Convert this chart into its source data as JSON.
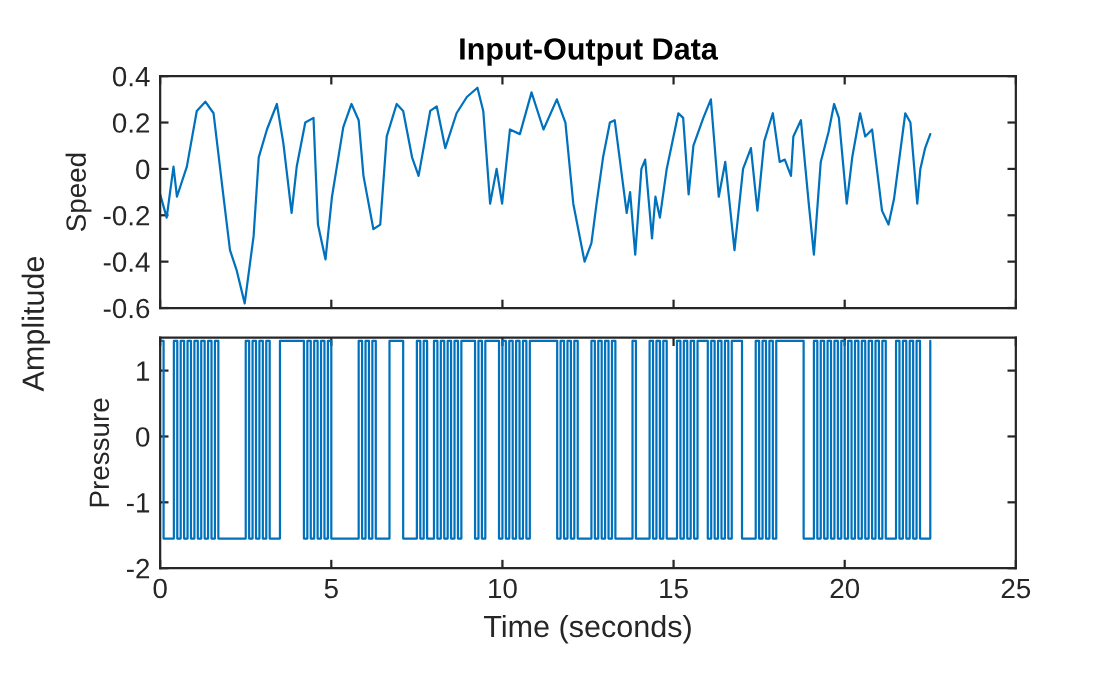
{
  "chart_data": [
    {
      "type": "line",
      "title": "Input-Output Data",
      "ylabel": "Speed",
      "annotations": [
        "Amplitude"
      ],
      "tick_labels": "y",
      "xlim": [
        0,
        25
      ],
      "xticks": [
        0,
        5,
        10,
        15,
        20,
        25
      ],
      "ylim": [
        -0.6,
        0.4
      ],
      "yticks": [
        -0.6,
        -0.4,
        -0.2,
        0,
        0.2,
        0.4
      ],
      "series": [
        {
          "color": "#0072bd",
          "x": [
            0,
            0.19,
            0.39,
            0.49,
            0.78,
            1.07,
            1.32,
            1.56,
            1.85,
            2.04,
            2.24,
            2.47,
            2.73,
            2.88,
            3.12,
            3.41,
            3.6,
            3.84,
            3.99,
            4.24,
            4.48,
            4.61,
            4.83,
            5.02,
            5.35,
            5.59,
            5.8,
            5.94,
            6.23,
            6.43,
            6.62,
            6.91,
            7.1,
            7.36,
            7.55,
            7.89,
            8.08,
            8.33,
            8.66,
            8.96,
            9.27,
            9.44,
            9.64,
            9.83,
            9.99,
            10.22,
            10.51,
            10.85,
            11.2,
            11.59,
            11.84,
            12.07,
            12.4,
            12.6,
            12.75,
            12.94,
            13.14,
            13.28,
            13.43,
            13.63,
            13.73,
            13.88,
            14.06,
            14.17,
            14.37,
            14.47,
            14.6,
            14.8,
            15.14,
            15.28,
            15.44,
            15.58,
            15.87,
            16.09,
            16.32,
            16.51,
            16.78,
            17.03,
            17.26,
            17.45,
            17.65,
            17.9,
            18.1,
            18.25,
            18.43,
            18.5,
            18.72,
            18.95,
            19.1,
            19.3,
            19.53,
            19.69,
            19.83,
            20.06,
            20.22,
            20.45,
            20.6,
            20.8,
            21.09,
            21.28,
            21.44,
            21.77,
            21.92,
            22.12,
            22.21,
            22.35,
            22.5
          ],
          "values": [
            -0.11,
            -0.21,
            0.01,
            -0.12,
            0.01,
            0.25,
            0.29,
            0.24,
            -0.12,
            -0.35,
            -0.44,
            -0.58,
            -0.29,
            0.05,
            0.17,
            0.28,
            0.11,
            -0.19,
            0.01,
            0.2,
            0.22,
            -0.24,
            -0.39,
            -0.12,
            0.18,
            0.28,
            0.21,
            -0.03,
            -0.26,
            -0.24,
            0.14,
            0.28,
            0.25,
            0.05,
            -0.03,
            0.25,
            0.27,
            0.09,
            0.24,
            0.31,
            0.35,
            0.25,
            -0.15,
            0.0,
            -0.15,
            0.17,
            0.15,
            0.33,
            0.17,
            0.3,
            0.2,
            -0.15,
            -0.4,
            -0.32,
            -0.15,
            0.05,
            0.2,
            0.21,
            0.04,
            -0.19,
            -0.1,
            -0.37,
            0.0,
            0.04,
            -0.3,
            -0.12,
            -0.21,
            0.0,
            0.24,
            0.22,
            -0.11,
            0.1,
            0.22,
            0.3,
            -0.12,
            0.03,
            -0.35,
            0.0,
            0.09,
            -0.18,
            0.12,
            0.24,
            0.03,
            0.04,
            -0.03,
            0.14,
            0.21,
            -0.15,
            -0.37,
            0.03,
            0.16,
            0.28,
            0.22,
            -0.15,
            0.05,
            0.24,
            0.14,
            0.17,
            -0.18,
            -0.24,
            -0.13,
            0.24,
            0.2,
            -0.15,
            0.0,
            0.09,
            0.15
          ]
        }
      ]
    },
    {
      "type": "step",
      "ylabel": "Pressure",
      "xlabel": "Time (seconds)",
      "xlim": [
        0,
        25
      ],
      "xticks": [
        0,
        5,
        10,
        15,
        20,
        25
      ],
      "ylim": [
        -2,
        1.5
      ],
      "yticks": [
        -2,
        -1,
        0,
        1
      ],
      "series": [
        {
          "color": "#0072bd",
          "x": [
            0,
            0.1,
            0.4,
            0.5,
            0.6,
            0.7,
            0.8,
            0.9,
            1.0,
            1.1,
            1.2,
            1.3,
            1.4,
            1.5,
            1.6,
            1.7,
            2.5,
            2.6,
            2.7,
            2.8,
            2.9,
            3.0,
            3.1,
            3.2,
            3.5,
            4.2,
            4.3,
            4.4,
            4.5,
            4.6,
            4.7,
            4.8,
            4.9,
            5.0,
            5.8,
            5.9,
            6.0,
            6.1,
            6.2,
            6.3,
            6.7,
            7.1,
            7.5,
            7.6,
            7.7,
            7.8,
            8.0,
            8.1,
            8.2,
            8.3,
            8.4,
            8.5,
            8.6,
            8.7,
            8.8,
            9.2,
            9.3,
            9.4,
            9.5,
            9.9,
            10.0,
            10.1,
            10.2,
            10.3,
            10.4,
            10.5,
            10.6,
            10.7,
            10.8,
            11.6,
            11.7,
            11.8,
            11.9,
            12.0,
            12.1,
            12.2,
            12.6,
            12.7,
            12.8,
            12.9,
            13.0,
            13.1,
            13.2,
            13.3,
            13.8,
            13.9,
            14.3,
            14.4,
            14.5,
            14.6,
            14.7,
            14.8,
            15.1,
            15.2,
            15.3,
            15.4,
            15.5,
            15.6,
            15.7,
            16.0,
            16.1,
            16.2,
            16.3,
            16.4,
            16.5,
            16.6,
            16.7,
            17.0,
            17.4,
            17.5,
            17.6,
            17.7,
            17.8,
            17.9,
            18.0,
            18.8,
            19.1,
            19.2,
            19.3,
            19.4,
            19.5,
            19.6,
            19.7,
            19.8,
            19.9,
            20.0,
            20.1,
            20.2,
            20.3,
            20.4,
            20.5,
            20.6,
            20.7,
            20.8,
            20.9,
            21.0,
            21.1,
            21.2,
            21.5,
            21.6,
            21.7,
            21.8,
            21.9,
            22.0,
            22.1,
            22.2,
            22.5
          ],
          "values": [
            1.45,
            -1.55,
            1.45,
            -1.55,
            1.45,
            -1.55,
            1.45,
            -1.55,
            1.45,
            -1.55,
            1.45,
            -1.55,
            1.45,
            -1.55,
            1.45,
            -1.55,
            1.45,
            -1.55,
            1.45,
            -1.55,
            1.45,
            -1.55,
            1.45,
            -1.55,
            1.45,
            -1.55,
            1.45,
            -1.55,
            1.45,
            -1.55,
            1.45,
            -1.55,
            1.45,
            -1.55,
            1.45,
            -1.55,
            1.45,
            -1.55,
            1.45,
            -1.55,
            1.45,
            -1.55,
            1.45,
            -1.55,
            1.45,
            -1.55,
            1.45,
            -1.55,
            1.45,
            -1.55,
            1.45,
            -1.55,
            1.45,
            -1.55,
            1.45,
            -1.55,
            1.45,
            -1.55,
            1.45,
            -1.55,
            1.45,
            -1.55,
            1.45,
            -1.55,
            1.45,
            -1.55,
            1.45,
            -1.55,
            1.45,
            -1.55,
            1.45,
            -1.55,
            1.45,
            -1.55,
            1.45,
            -1.55,
            1.45,
            -1.55,
            1.45,
            -1.55,
            1.45,
            -1.55,
            1.45,
            -1.55,
            1.45,
            -1.55,
            1.45,
            -1.55,
            1.45,
            -1.55,
            1.45,
            -1.55,
            1.45,
            -1.55,
            1.45,
            -1.55,
            1.45,
            -1.55,
            1.45,
            -1.55,
            1.45,
            -1.55,
            1.45,
            -1.55,
            1.45,
            -1.55,
            1.45,
            -1.55,
            1.45,
            -1.55,
            1.45,
            -1.55,
            1.45,
            -1.55,
            1.45,
            -1.55,
            1.45,
            -1.55,
            1.45,
            -1.55,
            1.45,
            -1.55,
            1.45,
            -1.55,
            1.45,
            -1.55,
            1.45,
            -1.55,
            1.45,
            -1.55,
            1.45,
            -1.55,
            1.45,
            -1.55,
            1.45,
            -1.55,
            1.45,
            -1.55,
            1.45,
            -1.55,
            1.45,
            -1.55,
            1.45,
            -1.55,
            1.45,
            -1.55,
            1.45
          ]
        }
      ]
    }
  ]
}
